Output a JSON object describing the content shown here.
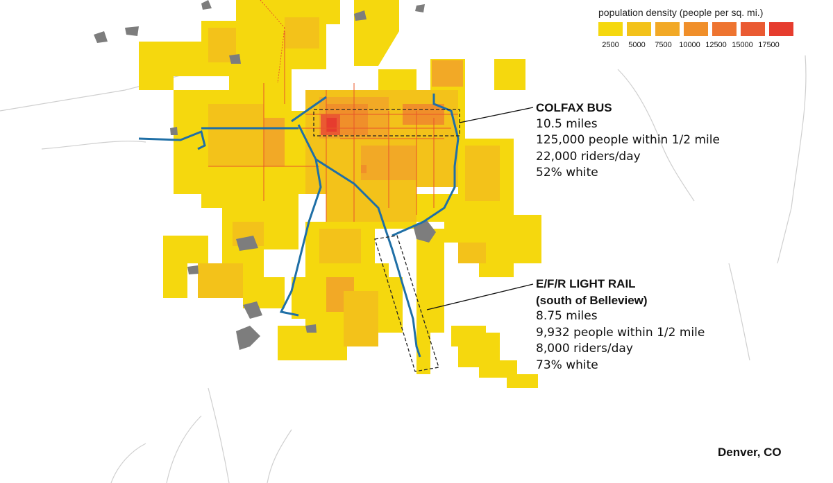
{
  "legend": {
    "title": "population density (people per sq. mi.)",
    "steps": [
      {
        "label": "2500",
        "color": "#f5d80e"
      },
      {
        "label": "5000",
        "color": "#f3c21a"
      },
      {
        "label": "7500",
        "color": "#f2a926"
      },
      {
        "label": "10000",
        "color": "#f08f2a"
      },
      {
        "label": "12500",
        "color": "#ee7430"
      },
      {
        "label": "15000",
        "color": "#ea5a32"
      },
      {
        "label": "17500",
        "color": "#e63c2e"
      }
    ]
  },
  "colfax": {
    "title": "COLFAX BUS",
    "lines": [
      "10.5 miles",
      "125,000 people within 1/2 mile",
      "22,000 riders/day",
      "52% white"
    ]
  },
  "rail": {
    "title_1": "E/F/R LIGHT RAIL",
    "title_2": "(south of Belleview)",
    "lines": [
      "8.75 miles",
      "9,932 people within 1/2 mile",
      "8,000 riders/day",
      "73% white"
    ]
  },
  "place": "Denver, CO",
  "colors": {
    "rail_line": "#1f6fa6",
    "bus_line": "#e8542a",
    "water": "#7d7d7d",
    "roads": "#c9c9c9"
  }
}
